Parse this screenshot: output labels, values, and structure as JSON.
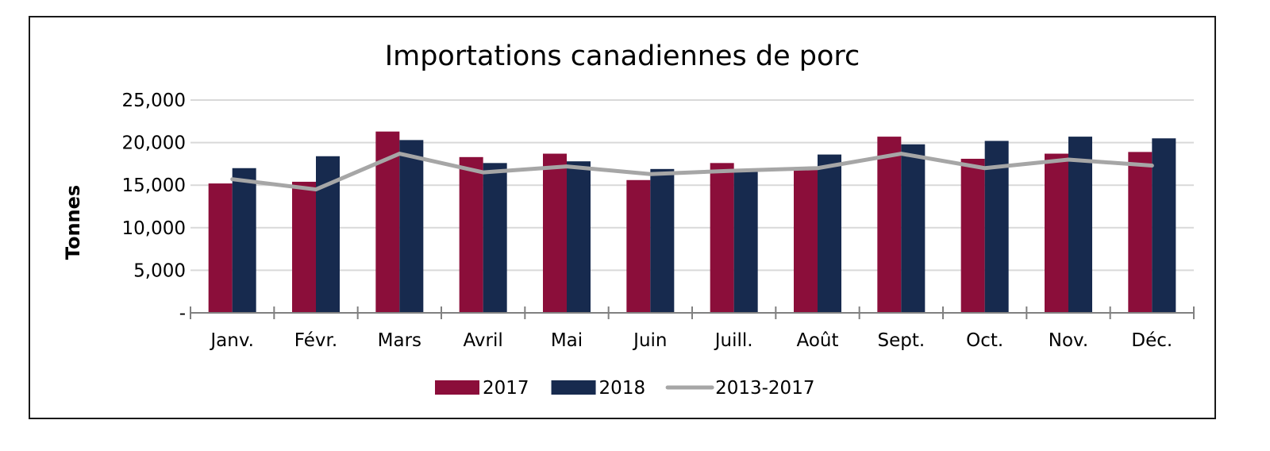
{
  "chart_data": {
    "type": "bar",
    "title": "Importations canadiennes de porc",
    "xlabel": "",
    "ylabel": "Tonnes",
    "ylim": [
      0,
      25000
    ],
    "yticks": [
      0,
      5000,
      10000,
      15000,
      20000,
      25000
    ],
    "ytick_labels": [
      "-",
      "5,000",
      "10,000",
      "15,000",
      "20,000",
      "25,000"
    ],
    "grid": true,
    "legend_position": "bottom",
    "categories": [
      "Janv.",
      "Févr.",
      "Mars",
      "Avril",
      "Mai",
      "Juin",
      "Juill.",
      "Août",
      "Sept.",
      "Oct.",
      "Nov.",
      "Déc."
    ],
    "series": [
      {
        "name": "2017",
        "type": "bar",
        "color": "#8b0e3a",
        "values": [
          15200,
          15400,
          21300,
          18300,
          18700,
          15600,
          17600,
          16900,
          20700,
          18100,
          18700,
          18900
        ]
      },
      {
        "name": "2018",
        "type": "bar",
        "color": "#172a4e",
        "values": [
          17000,
          18400,
          20300,
          17600,
          17800,
          16900,
          16600,
          18600,
          19800,
          20200,
          20700,
          20500
        ]
      },
      {
        "name": "2013-2017",
        "type": "line",
        "color": "#a6a6a6",
        "values": [
          15700,
          14500,
          18700,
          16500,
          17200,
          16300,
          16700,
          17000,
          18700,
          17000,
          18000,
          17300
        ]
      }
    ]
  }
}
